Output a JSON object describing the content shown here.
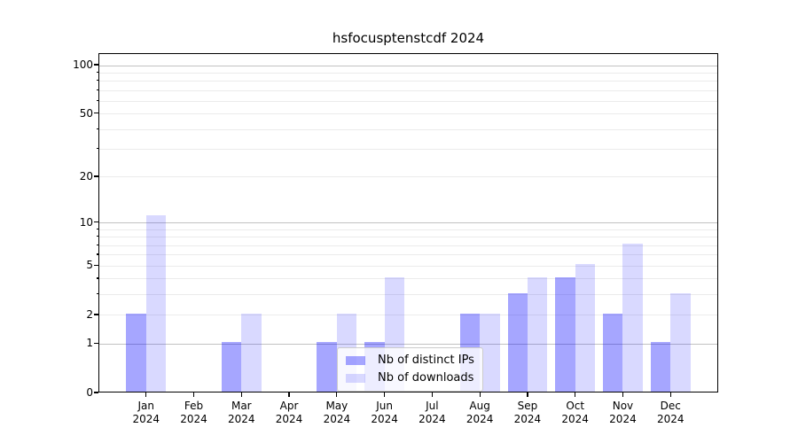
{
  "title": "hsfocusptenstcdf 2024",
  "chart_data": {
    "type": "bar",
    "title": "hsfocusptenstcdf 2024",
    "x_tick_months": [
      "Jan",
      "Feb",
      "Mar",
      "Apr",
      "May",
      "Jun",
      "Jul",
      "Aug",
      "Sep",
      "Oct",
      "Nov",
      "Dec"
    ],
    "x_tick_year": "2024",
    "series": [
      {
        "name": "Nb of distinct IPs",
        "color": "rgba(0,0,255,0.35)",
        "values": [
          2,
          0,
          1,
          0,
          1,
          1,
          0,
          2,
          3,
          4,
          2,
          1
        ]
      },
      {
        "name": "Nb of downloads",
        "color": "rgba(0,0,255,0.15)",
        "values": [
          11,
          0,
          2,
          0,
          2,
          4,
          0,
          2,
          4,
          5,
          7,
          3
        ]
      }
    ],
    "y_scale": "log10(1+y)",
    "y_ticks_labeled": [
      0,
      1,
      2,
      5,
      10,
      20,
      50,
      100
    ],
    "y_gridlines_major": [
      1,
      10,
      100
    ],
    "y_gridlines_minor": [
      2,
      3,
      4,
      5,
      6,
      7,
      8,
      9,
      20,
      30,
      40,
      50,
      60,
      70,
      80,
      90
    ],
    "ylim": [
      0,
      117
    ],
    "grid": true,
    "legend_position": "lower center",
    "colors": {
      "major_grid": "#c2c2c2",
      "minor_grid": "#ebebeb",
      "spine": "#000000"
    }
  }
}
